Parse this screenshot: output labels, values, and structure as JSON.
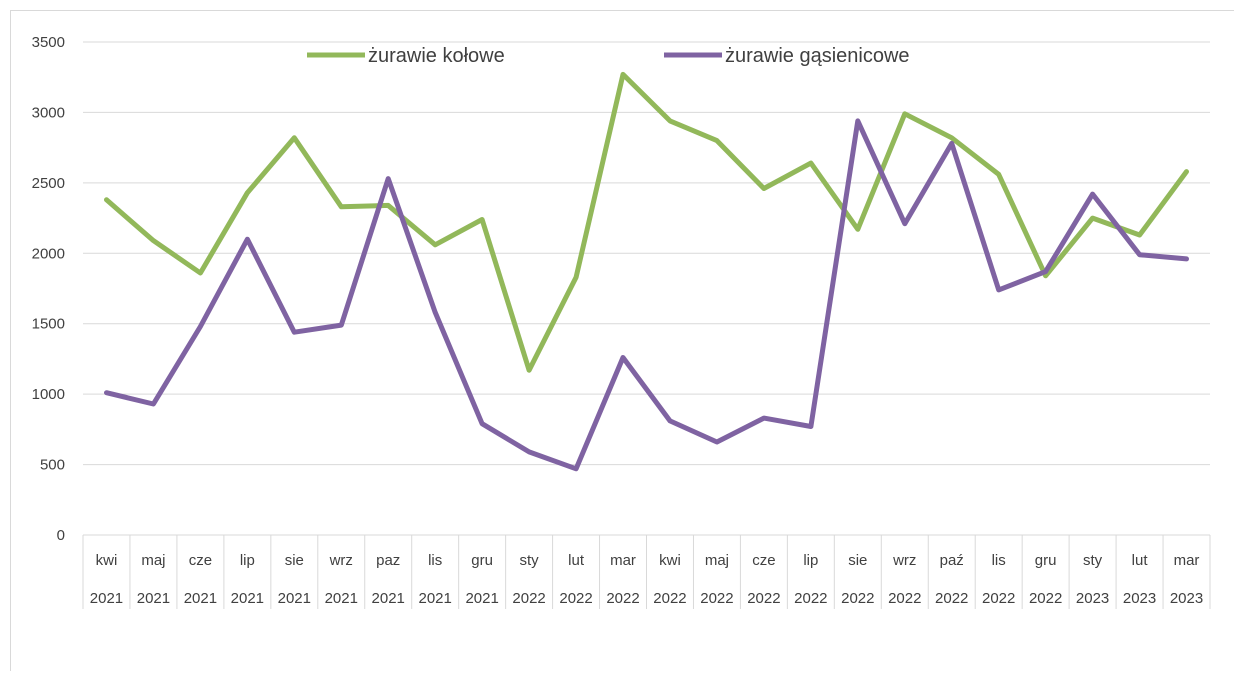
{
  "chart_data": {
    "type": "line",
    "title": "",
    "xlabel": "",
    "ylabel": "",
    "ylim": [
      0,
      3500
    ],
    "yticks": [
      0,
      500,
      1000,
      1500,
      2000,
      2500,
      3000,
      3500
    ],
    "grid": true,
    "legend_position": "top-center",
    "categories": [
      {
        "month": "kwi",
        "year": "2021"
      },
      {
        "month": "maj",
        "year": "2021"
      },
      {
        "month": "cze",
        "year": "2021"
      },
      {
        "month": "lip",
        "year": "2021"
      },
      {
        "month": "sie",
        "year": "2021"
      },
      {
        "month": "wrz",
        "year": "2021"
      },
      {
        "month": "paz",
        "year": "2021"
      },
      {
        "month": "lis",
        "year": "2021"
      },
      {
        "month": "gru",
        "year": "2021"
      },
      {
        "month": "sty",
        "year": "2022"
      },
      {
        "month": "lut",
        "year": "2022"
      },
      {
        "month": "mar",
        "year": "2022"
      },
      {
        "month": "kwi",
        "year": "2022"
      },
      {
        "month": "maj",
        "year": "2022"
      },
      {
        "month": "cze",
        "year": "2022"
      },
      {
        "month": "lip",
        "year": "2022"
      },
      {
        "month": "sie",
        "year": "2022"
      },
      {
        "month": "wrz",
        "year": "2022"
      },
      {
        "month": "paź",
        "year": "2022"
      },
      {
        "month": "lis",
        "year": "2022"
      },
      {
        "month": "gru",
        "year": "2022"
      },
      {
        "month": "sty",
        "year": "2023"
      },
      {
        "month": "lut",
        "year": "2023"
      },
      {
        "month": "mar",
        "year": "2023"
      }
    ],
    "series": [
      {
        "name": "żurawie kołowe",
        "color": "#92b85a",
        "values": [
          2380,
          2090,
          1860,
          2430,
          2820,
          2330,
          2340,
          2060,
          2240,
          1170,
          1830,
          3270,
          2940,
          2800,
          2460,
          2640,
          2170,
          2990,
          2820,
          2560,
          1840,
          2250,
          2130,
          2580
        ]
      },
      {
        "name": "żurawie gąsienicowe",
        "color": "#7f63a2",
        "values": [
          1010,
          930,
          1480,
          2100,
          1440,
          1490,
          2530,
          1580,
          790,
          590,
          470,
          1260,
          810,
          660,
          830,
          770,
          2940,
          2210,
          2780,
          1740,
          1870,
          2420,
          1990,
          1960
        ]
      }
    ]
  }
}
